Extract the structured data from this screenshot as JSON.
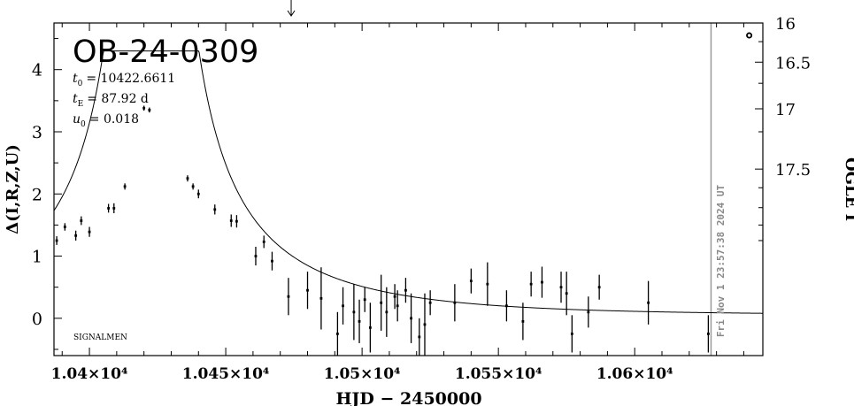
{
  "chart_data": {
    "type": "scatter",
    "title": "OB-24-0309",
    "xlabel": "HJD − 2450000",
    "ylabel_left": "Δ(I,R,Z,U)",
    "ylabel_right": "OGLE I",
    "xlim": [
      10387,
      10647
    ],
    "ylim": [
      -0.6,
      4.75
    ],
    "x_ticks": [
      10400,
      10450,
      10500,
      10550,
      10600
    ],
    "x_tick_labels": [
      "1.04×10⁴",
      "1.045×10⁴",
      "1.05×10⁴",
      "1.055×10⁴",
      "1.06×10⁴"
    ],
    "y_ticks": [
      0,
      1,
      2,
      3,
      4
    ],
    "y_tick_labels": [
      "0",
      "1",
      "2",
      "3",
      "4"
    ],
    "right_ticks": [
      {
        "label": "16",
        "delta": 4.75
      },
      {
        "label": "16.5",
        "delta": 4.12
      },
      {
        "label": "17",
        "delta": 3.37
      },
      {
        "label": "17.5",
        "delta": 2.4
      }
    ],
    "params": {
      "t0_label": "t",
      "t0_sub": "0",
      "t0_value": "= 10422.6611",
      "tE_label": "t",
      "tE_sub": "E",
      "tE_value": "= 87.92 d",
      "u0_label": "u",
      "u0_sub": "0",
      "u0_value": "= 0.018"
    },
    "model": {
      "t0": 10422.6611,
      "tE": 87.92,
      "u0": 0.018,
      "baseline": 0.05,
      "peak_cap": 4.3
    },
    "timestamp": "Fri Nov  1 23:57:38 2024 UT",
    "now_line_x": 10628,
    "arrow_x": 10474,
    "footer": "SIGNALMEN",
    "points": [
      {
        "x": 10388,
        "y": 1.25,
        "e": 0.07
      },
      {
        "x": 10391,
        "y": 1.47,
        "e": 0.06
      },
      {
        "x": 10395,
        "y": 1.33,
        "e": 0.08
      },
      {
        "x": 10397,
        "y": 1.57,
        "e": 0.07
      },
      {
        "x": 10400,
        "y": 1.39,
        "e": 0.08
      },
      {
        "x": 10407,
        "y": 1.77,
        "e": 0.07
      },
      {
        "x": 10409,
        "y": 1.77,
        "e": 0.08
      },
      {
        "x": 10413,
        "y": 2.12,
        "e": 0.05
      },
      {
        "x": 10420,
        "y": 3.38,
        "e": 0.04
      },
      {
        "x": 10422,
        "y": 3.35,
        "e": 0.04
      },
      {
        "x": 10436,
        "y": 2.25,
        "e": 0.05
      },
      {
        "x": 10438,
        "y": 2.12,
        "e": 0.05
      },
      {
        "x": 10440,
        "y": 2.0,
        "e": 0.07
      },
      {
        "x": 10446,
        "y": 1.75,
        "e": 0.08
      },
      {
        "x": 10452,
        "y": 1.57,
        "e": 0.1
      },
      {
        "x": 10454,
        "y": 1.56,
        "e": 0.1
      },
      {
        "x": 10461,
        "y": 1.0,
        "e": 0.15
      },
      {
        "x": 10464,
        "y": 1.23,
        "e": 0.1
      },
      {
        "x": 10467,
        "y": 0.92,
        "e": 0.15
      },
      {
        "x": 10473,
        "y": 0.35,
        "e": 0.3
      },
      {
        "x": 10480,
        "y": 0.45,
        "e": 0.3
      },
      {
        "x": 10485,
        "y": 0.32,
        "e": 0.5
      },
      {
        "x": 10491,
        "y": -0.25,
        "e": 0.35
      },
      {
        "x": 10493,
        "y": 0.2,
        "e": 0.3
      },
      {
        "x": 10497,
        "y": 0.1,
        "e": 0.45
      },
      {
        "x": 10499,
        "y": -0.05,
        "e": 0.35
      },
      {
        "x": 10501,
        "y": 0.3,
        "e": 0.2
      },
      {
        "x": 10503,
        "y": -0.15,
        "e": 0.4
      },
      {
        "x": 10507,
        "y": 0.25,
        "e": 0.45
      },
      {
        "x": 10509,
        "y": 0.1,
        "e": 0.4
      },
      {
        "x": 10512,
        "y": 0.35,
        "e": 0.2
      },
      {
        "x": 10513,
        "y": 0.2,
        "e": 0.25
      },
      {
        "x": 10516,
        "y": 0.45,
        "e": 0.2
      },
      {
        "x": 10518,
        "y": 0.0,
        "e": 0.4
      },
      {
        "x": 10521,
        "y": -0.3,
        "e": 0.3
      },
      {
        "x": 10523,
        "y": -0.1,
        "e": 0.5
      },
      {
        "x": 10525,
        "y": 0.25,
        "e": 0.2
      },
      {
        "x": 10534,
        "y": 0.25,
        "e": 0.3
      },
      {
        "x": 10540,
        "y": 0.6,
        "e": 0.2
      },
      {
        "x": 10546,
        "y": 0.55,
        "e": 0.35
      },
      {
        "x": 10553,
        "y": 0.2,
        "e": 0.25
      },
      {
        "x": 10559,
        "y": -0.05,
        "e": 0.3
      },
      {
        "x": 10562,
        "y": 0.55,
        "e": 0.2
      },
      {
        "x": 10566,
        "y": 0.58,
        "e": 0.25
      },
      {
        "x": 10573,
        "y": 0.5,
        "e": 0.25
      },
      {
        "x": 10575,
        "y": 0.4,
        "e": 0.35
      },
      {
        "x": 10577,
        "y": -0.25,
        "e": 0.3
      },
      {
        "x": 10583,
        "y": 0.1,
        "e": 0.25
      },
      {
        "x": 10587,
        "y": 0.5,
        "e": 0.2
      },
      {
        "x": 10605,
        "y": 0.25,
        "e": 0.35
      },
      {
        "x": 10627,
        "y": -0.25,
        "e": 0.3
      },
      {
        "x": 10642,
        "y": 4.55,
        "e": 0.0,
        "marker": "circle"
      }
    ]
  }
}
